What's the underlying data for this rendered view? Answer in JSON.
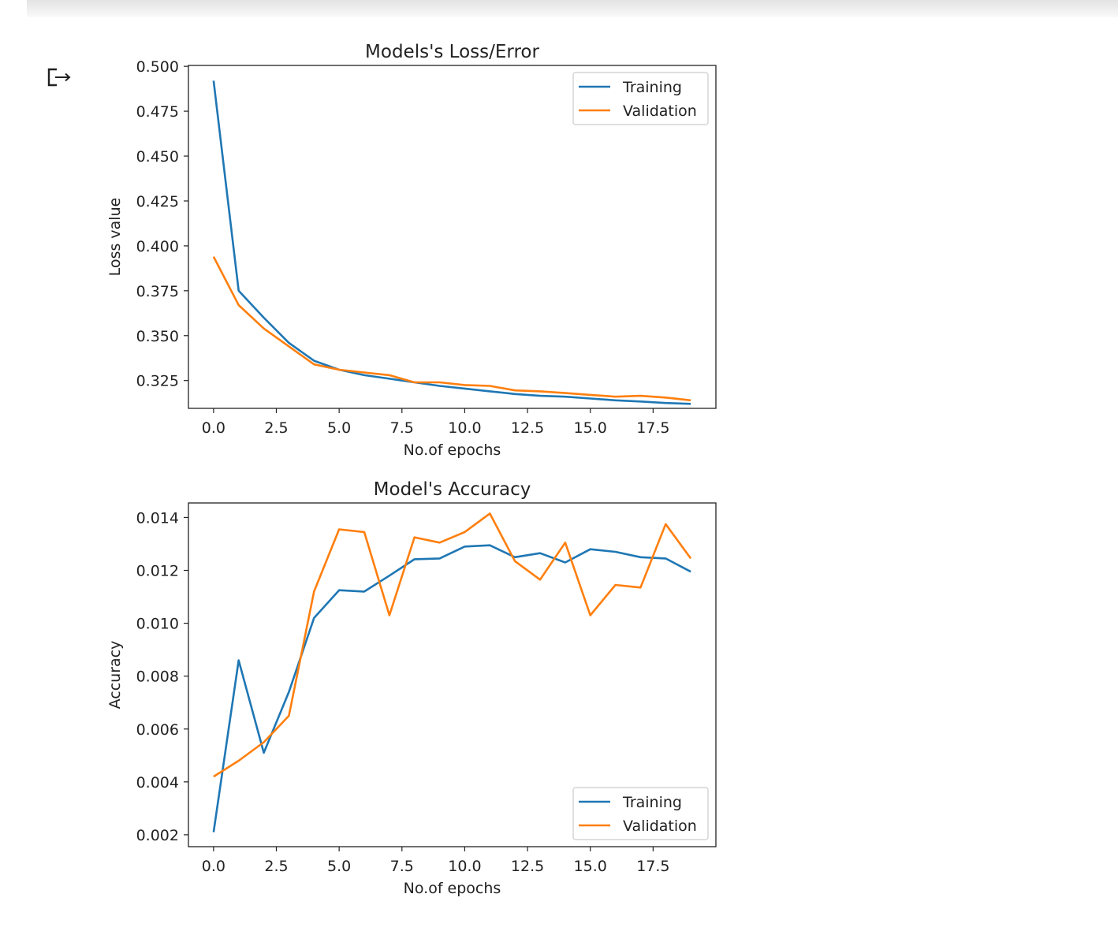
{
  "chart_data": [
    {
      "type": "line",
      "title": "Models's Loss/Error",
      "xlabel": "No.of epochs",
      "ylabel": "Loss value",
      "xlim": [
        -1.0,
        20.0
      ],
      "ylim": [
        0.3095,
        0.5005
      ],
      "xticks": [
        0.0,
        2.5,
        5.0,
        7.5,
        10.0,
        12.5,
        15.0,
        17.5
      ],
      "xtick_labels": [
        "0.0",
        "2.5",
        "5.0",
        "7.5",
        "10.0",
        "12.5",
        "15.0",
        "17.5"
      ],
      "yticks": [
        0.325,
        0.35,
        0.375,
        0.4,
        0.425,
        0.45,
        0.475,
        0.5
      ],
      "ytick_labels": [
        "0.325",
        "0.350",
        "0.375",
        "0.400",
        "0.425",
        "0.450",
        "0.475",
        "0.500"
      ],
      "grid": false,
      "legend_position": "top-right",
      "x": [
        0,
        1,
        2,
        3,
        4,
        5,
        6,
        7,
        8,
        9,
        10,
        11,
        12,
        13,
        14,
        15,
        16,
        17,
        18,
        19
      ],
      "series": [
        {
          "name": "Training",
          "color": "#1f77b4",
          "values": [
            0.492,
            0.375,
            0.36,
            0.346,
            0.336,
            0.331,
            0.328,
            0.326,
            0.324,
            0.322,
            0.3205,
            0.319,
            0.3175,
            0.3165,
            0.316,
            0.315,
            0.314,
            0.3133,
            0.3125,
            0.312
          ]
        },
        {
          "name": "Validation",
          "color": "#ff7f0e",
          "values": [
            0.394,
            0.367,
            0.354,
            0.344,
            0.334,
            0.331,
            0.3295,
            0.328,
            0.324,
            0.324,
            0.3225,
            0.322,
            0.3195,
            0.319,
            0.318,
            0.317,
            0.316,
            0.3165,
            0.3155,
            0.314
          ]
        }
      ]
    },
    {
      "type": "line",
      "title": "Model's Accuracy",
      "xlabel": "No.of epochs",
      "ylabel": "Accuracy",
      "xlim": [
        -1.0,
        20.0
      ],
      "ylim": [
        0.00155,
        0.01455
      ],
      "xticks": [
        0.0,
        2.5,
        5.0,
        7.5,
        10.0,
        12.5,
        15.0,
        17.5
      ],
      "xtick_labels": [
        "0.0",
        "2.5",
        "5.0",
        "7.5",
        "10.0",
        "12.5",
        "15.0",
        "17.5"
      ],
      "yticks": [
        0.002,
        0.004,
        0.006,
        0.008,
        0.01,
        0.012,
        0.014
      ],
      "ytick_labels": [
        "0.002",
        "0.004",
        "0.006",
        "0.008",
        "0.010",
        "0.012",
        "0.014"
      ],
      "grid": false,
      "legend_position": "bottom-right",
      "x": [
        0,
        1,
        2,
        3,
        4,
        5,
        6,
        7,
        8,
        9,
        10,
        11,
        12,
        13,
        14,
        15,
        16,
        17,
        18,
        19
      ],
      "series": [
        {
          "name": "Training",
          "color": "#1f77b4",
          "values": [
            0.0021,
            0.0086,
            0.0051,
            0.0074,
            0.0102,
            0.01125,
            0.0112,
            0.0118,
            0.01242,
            0.01245,
            0.0129,
            0.01295,
            0.0125,
            0.01265,
            0.0123,
            0.0128,
            0.0127,
            0.0125,
            0.01245,
            0.01195
          ]
        },
        {
          "name": "Validation",
          "color": "#ff7f0e",
          "values": [
            0.0042,
            0.0048,
            0.0055,
            0.0065,
            0.0112,
            0.01355,
            0.01345,
            0.0103,
            0.01325,
            0.01305,
            0.01345,
            0.01415,
            0.01235,
            0.01165,
            0.01305,
            0.0103,
            0.01145,
            0.01135,
            0.01375,
            0.01245
          ]
        }
      ]
    }
  ]
}
